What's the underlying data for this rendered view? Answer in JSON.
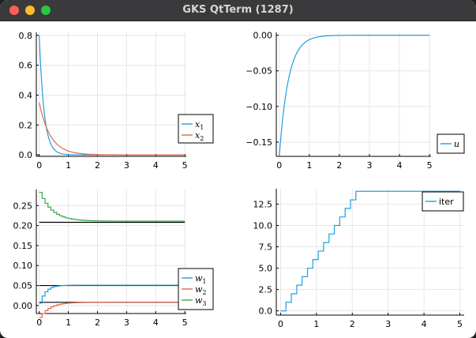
{
  "window": {
    "title": "GKS QtTerm (1287)",
    "controls": [
      "close",
      "minimize",
      "zoom"
    ]
  },
  "colors": {
    "series1": "#1f9fe0",
    "series2": "#e2664a",
    "series3": "#3ea84b",
    "reference": "#000000",
    "grid": "#e6e6e6"
  },
  "chart_data": [
    {
      "id": "states",
      "type": "line",
      "xlim": [
        -0.1,
        5.05
      ],
      "ylim": [
        -0.01,
        0.82
      ],
      "xticks": [
        0,
        1,
        2,
        3,
        4,
        5
      ],
      "xtick_labels": [
        "0",
        "1",
        "2",
        "3",
        "4",
        "5"
      ],
      "yticks": [
        0.0,
        0.2,
        0.4,
        0.6,
        0.8
      ],
      "ytick_labels": [
        "0.0",
        "0.2",
        "0.4",
        "0.6",
        "0.8"
      ],
      "grid": true,
      "legend": "bottom-right",
      "series": [
        {
          "name": "x",
          "sub": "1",
          "color_key": "series1",
          "model": "exp",
          "a": 0.8,
          "k": 6.0,
          "c": 0,
          "x0": 0,
          "x1": 5
        },
        {
          "name": "x",
          "sub": "2",
          "color_key": "series2",
          "model": "exp",
          "a": 0.35,
          "k": 2.6,
          "c": 0,
          "x0": 0,
          "x1": 5
        }
      ]
    },
    {
      "id": "input",
      "type": "line",
      "xlim": [
        -0.1,
        5.05
      ],
      "ylim": [
        -0.17,
        0.004
      ],
      "xticks": [
        0,
        1,
        2,
        3,
        4,
        5
      ],
      "xtick_labels": [
        "0",
        "1",
        "2",
        "3",
        "4",
        "5"
      ],
      "yticks": [
        0.0,
        -0.05,
        -0.1,
        -0.15
      ],
      "ytick_labels": [
        "0.00",
        "−0.05",
        "−0.10",
        "−0.15"
      ],
      "grid": true,
      "legend": "bottom-right",
      "series": [
        {
          "name": "u",
          "sub": "",
          "color_key": "series1",
          "model": "exp",
          "a": -0.17,
          "k": 3.3,
          "c": 0,
          "x0": 0,
          "x1": 5
        }
      ]
    },
    {
      "id": "weights",
      "type": "line",
      "xlim": [
        -0.1,
        5.05
      ],
      "ylim": [
        -0.02,
        0.29
      ],
      "xticks": [
        0,
        1,
        2,
        3,
        4,
        5
      ],
      "xtick_labels": [
        "0",
        "1",
        "2",
        "3",
        "4",
        "5"
      ],
      "yticks": [
        0.0,
        0.05,
        0.1,
        0.15,
        0.2,
        0.25
      ],
      "ytick_labels": [
        "0.00",
        "0.05",
        "0.10",
        "0.15",
        "0.20",
        "0.25"
      ],
      "grid": true,
      "legend": "bottom-right",
      "reference_lines": [
        {
          "y": 0.208,
          "x0": 0,
          "x1": 5
        },
        {
          "y": 0.05,
          "x0": 0,
          "x1": 5
        },
        {
          "y": 0.008,
          "x0": 0,
          "x1": 5
        }
      ],
      "series": [
        {
          "name": "w",
          "sub": "1",
          "color_key": "series1",
          "model": "stepexp",
          "a": -0.045,
          "k": 5.0,
          "c": 0.051,
          "x0": 0,
          "x1": 5,
          "dt": 0.1
        },
        {
          "name": "w",
          "sub": "2",
          "color_key": "series2",
          "model": "stepexp",
          "a": -0.038,
          "k": 3.0,
          "c": 0.008,
          "x0": 0,
          "x1": 5,
          "dt": 0.1
        },
        {
          "name": "w",
          "sub": "3",
          "color_key": "series3",
          "model": "stepexp",
          "a": 0.072,
          "k": 2.4,
          "c": 0.211,
          "x0": 0,
          "x1": 5,
          "dt": 0.1
        }
      ]
    },
    {
      "id": "iterations",
      "type": "line",
      "xlim": [
        -0.12,
        5.12
      ],
      "ylim": [
        -0.5,
        14.3
      ],
      "xticks": [
        0,
        1,
        2,
        3,
        4,
        5
      ],
      "xtick_labels": [
        "0",
        "1",
        "2",
        "3",
        "4",
        "5"
      ],
      "yticks": [
        0.0,
        2.5,
        5.0,
        7.5,
        10.0,
        12.5
      ],
      "ytick_labels": [
        "0.0",
        "2.5",
        "5.0",
        "7.5",
        "10.0",
        "12.5"
      ],
      "grid": true,
      "legend": "top-right",
      "series": [
        {
          "name": "iter",
          "sub": "",
          "plain": true,
          "color_key": "series1",
          "model": "stair",
          "x0": 0,
          "x1": 5,
          "dt": 0.15,
          "max": 14
        }
      ]
    }
  ]
}
